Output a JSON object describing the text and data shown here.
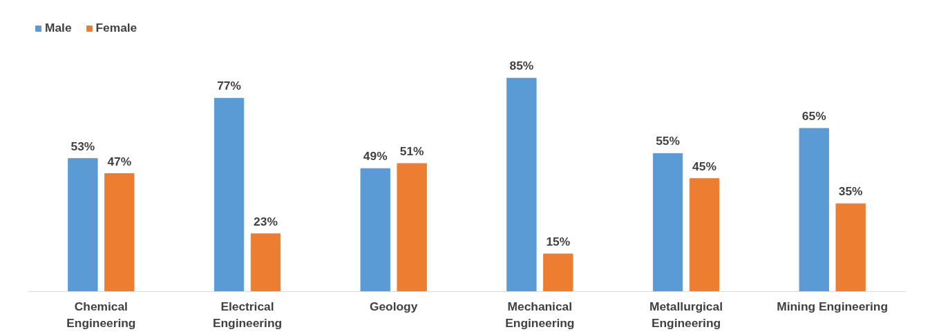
{
  "chart_data": {
    "type": "bar",
    "categories": [
      "Chemical Engineering",
      "Electrical Engineering",
      "Geology",
      "Mechanical Engineering",
      "Metallurgical Engineering",
      "Mining Engineering"
    ],
    "series": [
      {
        "name": "Male",
        "color": "#5b9bd5",
        "values": [
          53,
          77,
          49,
          85,
          55,
          65
        ],
        "value_labels": [
          "53%",
          "77%",
          "49%",
          "85%",
          "55%",
          "65%"
        ]
      },
      {
        "name": "Female",
        "color": "#ed7d31",
        "values": [
          47,
          23,
          51,
          15,
          45,
          35
        ],
        "value_labels": [
          "47%",
          "23%",
          "51%",
          "15%",
          "45%",
          "35%"
        ]
      }
    ],
    "legend": "top left",
    "grid": false,
    "tick_labels": "x"
  }
}
